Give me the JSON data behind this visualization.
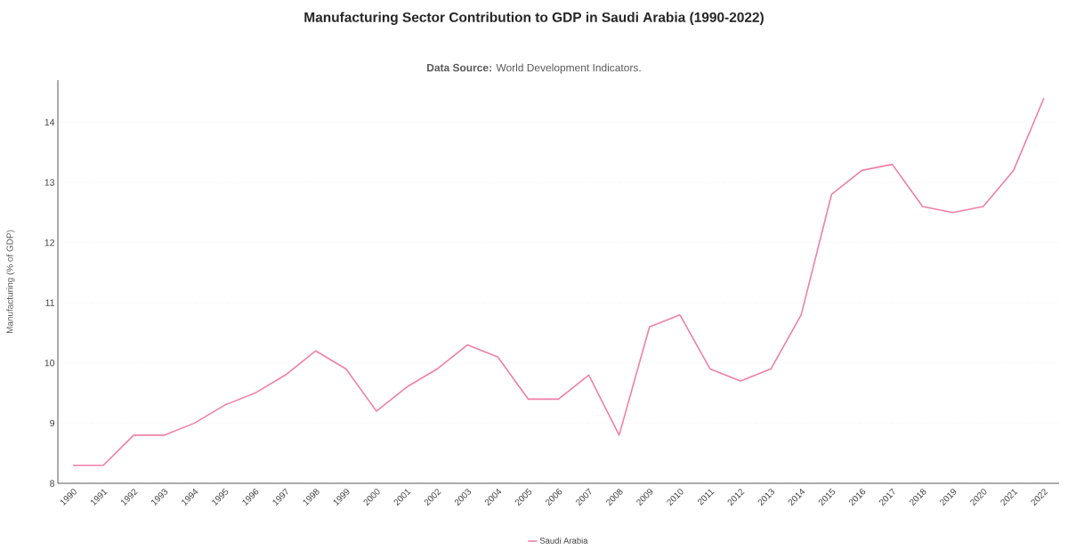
{
  "chart_data": {
    "type": "line",
    "title": "Manufacturing Sector Contribution to GDP in Saudi Arabia (1990-2022)",
    "subtitle": "**Data Source:** World Development Indicators.",
    "ylabel": "Manufacturing (% of GDP)",
    "categories": [
      "1990",
      "1991",
      "1992",
      "1993",
      "1994",
      "1995",
      "1996",
      "1997",
      "1998",
      "1999",
      "2000",
      "2001",
      "2002",
      "2003",
      "2004",
      "2005",
      "2006",
      "2007",
      "2008",
      "2009",
      "2010",
      "2011",
      "2012",
      "2013",
      "2014",
      "2015",
      "2016",
      "2017",
      "2018",
      "2019",
      "2020",
      "2021",
      "2022"
    ],
    "series": [
      {
        "name": "Saudi Arabia",
        "color": "#f07fa8",
        "values": [
          8.3,
          8.3,
          8.8,
          8.8,
          9.0,
          9.3,
          9.5,
          9.8,
          10.2,
          9.9,
          9.2,
          9.6,
          9.9,
          10.3,
          10.1,
          9.4,
          9.4,
          9.8,
          8.8,
          10.6,
          10.8,
          9.9,
          9.7,
          9.9,
          10.8,
          12.8,
          13.2,
          13.3,
          12.6,
          12.5,
          12.6,
          13.2,
          14.4
        ]
      }
    ],
    "ylim": [
      8,
      14.7
    ],
    "yticks": [
      8,
      9,
      10,
      11,
      12,
      13,
      14
    ],
    "grid": "y",
    "legend": "bottom",
    "marker": "none",
    "line_style": "solid"
  }
}
